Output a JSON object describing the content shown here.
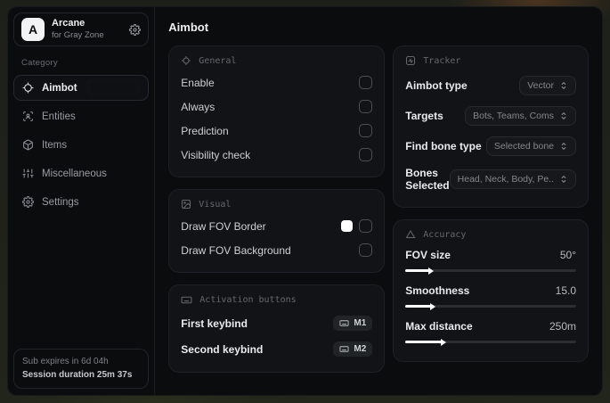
{
  "brand": {
    "initial": "A",
    "name": "Arcane",
    "subtitle": "for Gray Zone"
  },
  "sidebar": {
    "category_label": "Category",
    "items": [
      {
        "label": "Aimbot",
        "icon": "crosshair-icon"
      },
      {
        "label": "Entities",
        "icon": "entities-icon"
      },
      {
        "label": "Items",
        "icon": "items-icon"
      },
      {
        "label": "Miscellaneous",
        "icon": "sliders-icon"
      },
      {
        "label": "Settings",
        "icon": "gear-icon"
      }
    ],
    "footer": {
      "line1": "Sub expires in 6d 04h",
      "line2": "Session duration 25m 37s"
    }
  },
  "page": {
    "title": "Aimbot"
  },
  "general": {
    "title": "General",
    "rows": [
      {
        "label": "Enable",
        "checked": false
      },
      {
        "label": "Always",
        "checked": false
      },
      {
        "label": "Prediction",
        "checked": false
      },
      {
        "label": "Visibility check",
        "checked": false
      }
    ]
  },
  "visual": {
    "title": "Visual",
    "rows": [
      {
        "label": "Draw FOV Border",
        "swatch": "#ffffff",
        "checked": false
      },
      {
        "label": "Draw FOV Background",
        "checked": false
      }
    ]
  },
  "activation": {
    "title": "Activation buttons",
    "rows": [
      {
        "label": "First keybind",
        "key": "M1"
      },
      {
        "label": "Second keybind",
        "key": "M2"
      }
    ]
  },
  "tracker": {
    "title": "Tracker",
    "rows": [
      {
        "label": "Aimbot type",
        "value": "Vector"
      },
      {
        "label": "Targets",
        "value": "Bots, Teams, Coms"
      },
      {
        "label": "Find bone type",
        "value": "Selected bone"
      },
      {
        "label": "Bones Selected",
        "value": "Head, Neck, Body, Pe.."
      }
    ]
  },
  "accuracy": {
    "title": "Accuracy",
    "rows": [
      {
        "label": "FOV size",
        "value": "50°",
        "percent": 14
      },
      {
        "label": "Smoothness",
        "value": "15.0",
        "percent": 15
      },
      {
        "label": "Max distance",
        "value": "250m",
        "percent": 21
      }
    ]
  },
  "colors": {
    "card_bg": "#121317",
    "accent": "#ffffff",
    "fov_swatch": "#ffffff"
  }
}
